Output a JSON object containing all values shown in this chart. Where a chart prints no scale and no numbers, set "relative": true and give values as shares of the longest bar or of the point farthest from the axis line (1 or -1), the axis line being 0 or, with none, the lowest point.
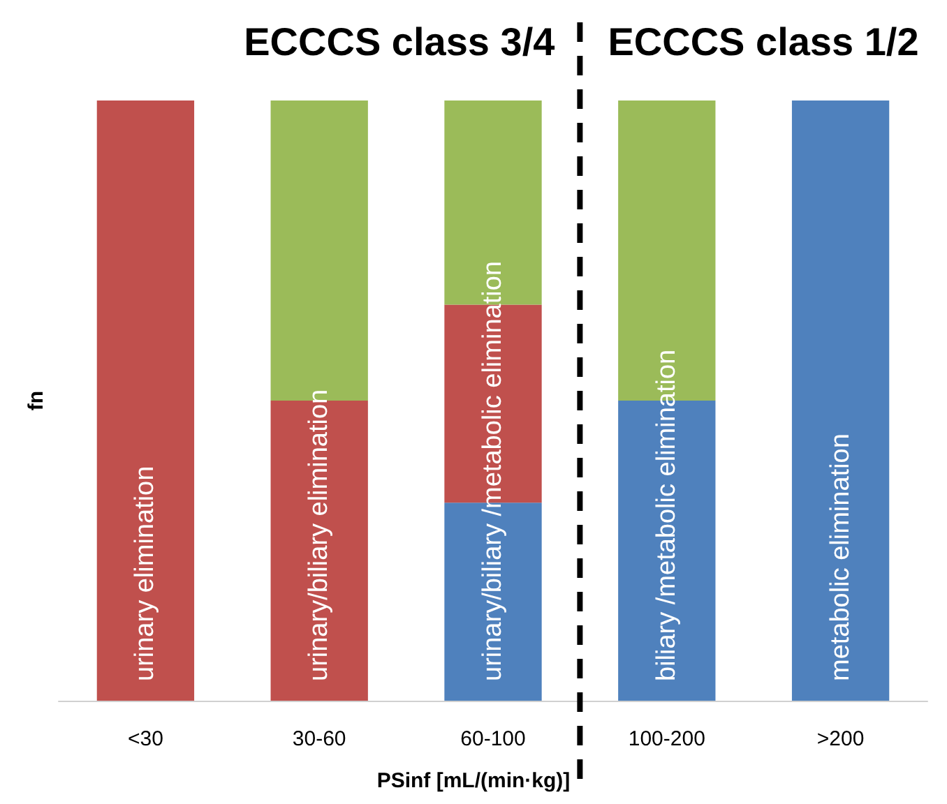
{
  "chart_data": {
    "type": "bar",
    "stacked": true,
    "relative": true,
    "xlabel": "PSinf [mL/(min·kg)]",
    "ylabel": "fn",
    "categories": [
      "<30",
      "30-60",
      "60-100",
      "100-200",
      ">200"
    ],
    "series": [
      {
        "color": "#4f81bd",
        "values": [
          null,
          null,
          0.33,
          0.5,
          1
        ]
      },
      {
        "color": "#c0504d",
        "values": [
          1,
          0.5,
          0.33,
          null,
          null
        ]
      },
      {
        "color": "#9bbb59",
        "values": [
          null,
          0.5,
          0.34,
          0.5,
          null
        ]
      }
    ],
    "annotations": [
      "ECCCS class 3/4",
      "ECCCS class 1/2",
      "urinary elimination",
      "urinary/biliary elimination",
      "urinary/biliary /metabolic elimination",
      "biliary /metabolic elimination",
      "metabolic elimination"
    ],
    "grid": false
  }
}
